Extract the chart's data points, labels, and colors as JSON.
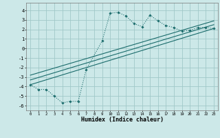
{
  "bg_color": "#cce8e8",
  "grid_color": "#a0c8c8",
  "line_color": "#1a6b6b",
  "xlabel": "Humidex (Indice chaleur)",
  "xlim": [
    -0.5,
    23.5
  ],
  "ylim": [
    -6.5,
    4.8
  ],
  "yticks": [
    -6,
    -5,
    -4,
    -3,
    -2,
    -1,
    0,
    1,
    2,
    3,
    4
  ],
  "xticks": [
    0,
    1,
    2,
    3,
    4,
    5,
    6,
    7,
    8,
    9,
    10,
    11,
    12,
    13,
    14,
    15,
    16,
    17,
    18,
    19,
    20,
    21,
    22,
    23
  ],
  "series1_x": [
    0,
    1,
    2,
    3,
    4,
    5,
    6,
    7,
    9,
    10,
    11,
    12,
    13,
    14,
    15,
    16,
    17,
    18,
    19,
    20,
    21,
    22,
    23
  ],
  "series1_y": [
    -3.8,
    -4.3,
    -4.3,
    -5.0,
    -5.7,
    -5.55,
    -5.55,
    -2.2,
    0.8,
    3.7,
    3.8,
    3.4,
    2.6,
    2.3,
    3.5,
    2.9,
    2.4,
    2.2,
    1.8,
    1.9,
    2.2,
    2.2,
    2.1
  ],
  "series2_x": [
    0,
    23
  ],
  "series2_y": [
    -3.8,
    2.1
  ],
  "series3_x": [
    0,
    23
  ],
  "series3_y": [
    -3.3,
    2.5
  ],
  "series4_x": [
    0,
    23
  ],
  "series4_y": [
    -2.8,
    2.9
  ]
}
